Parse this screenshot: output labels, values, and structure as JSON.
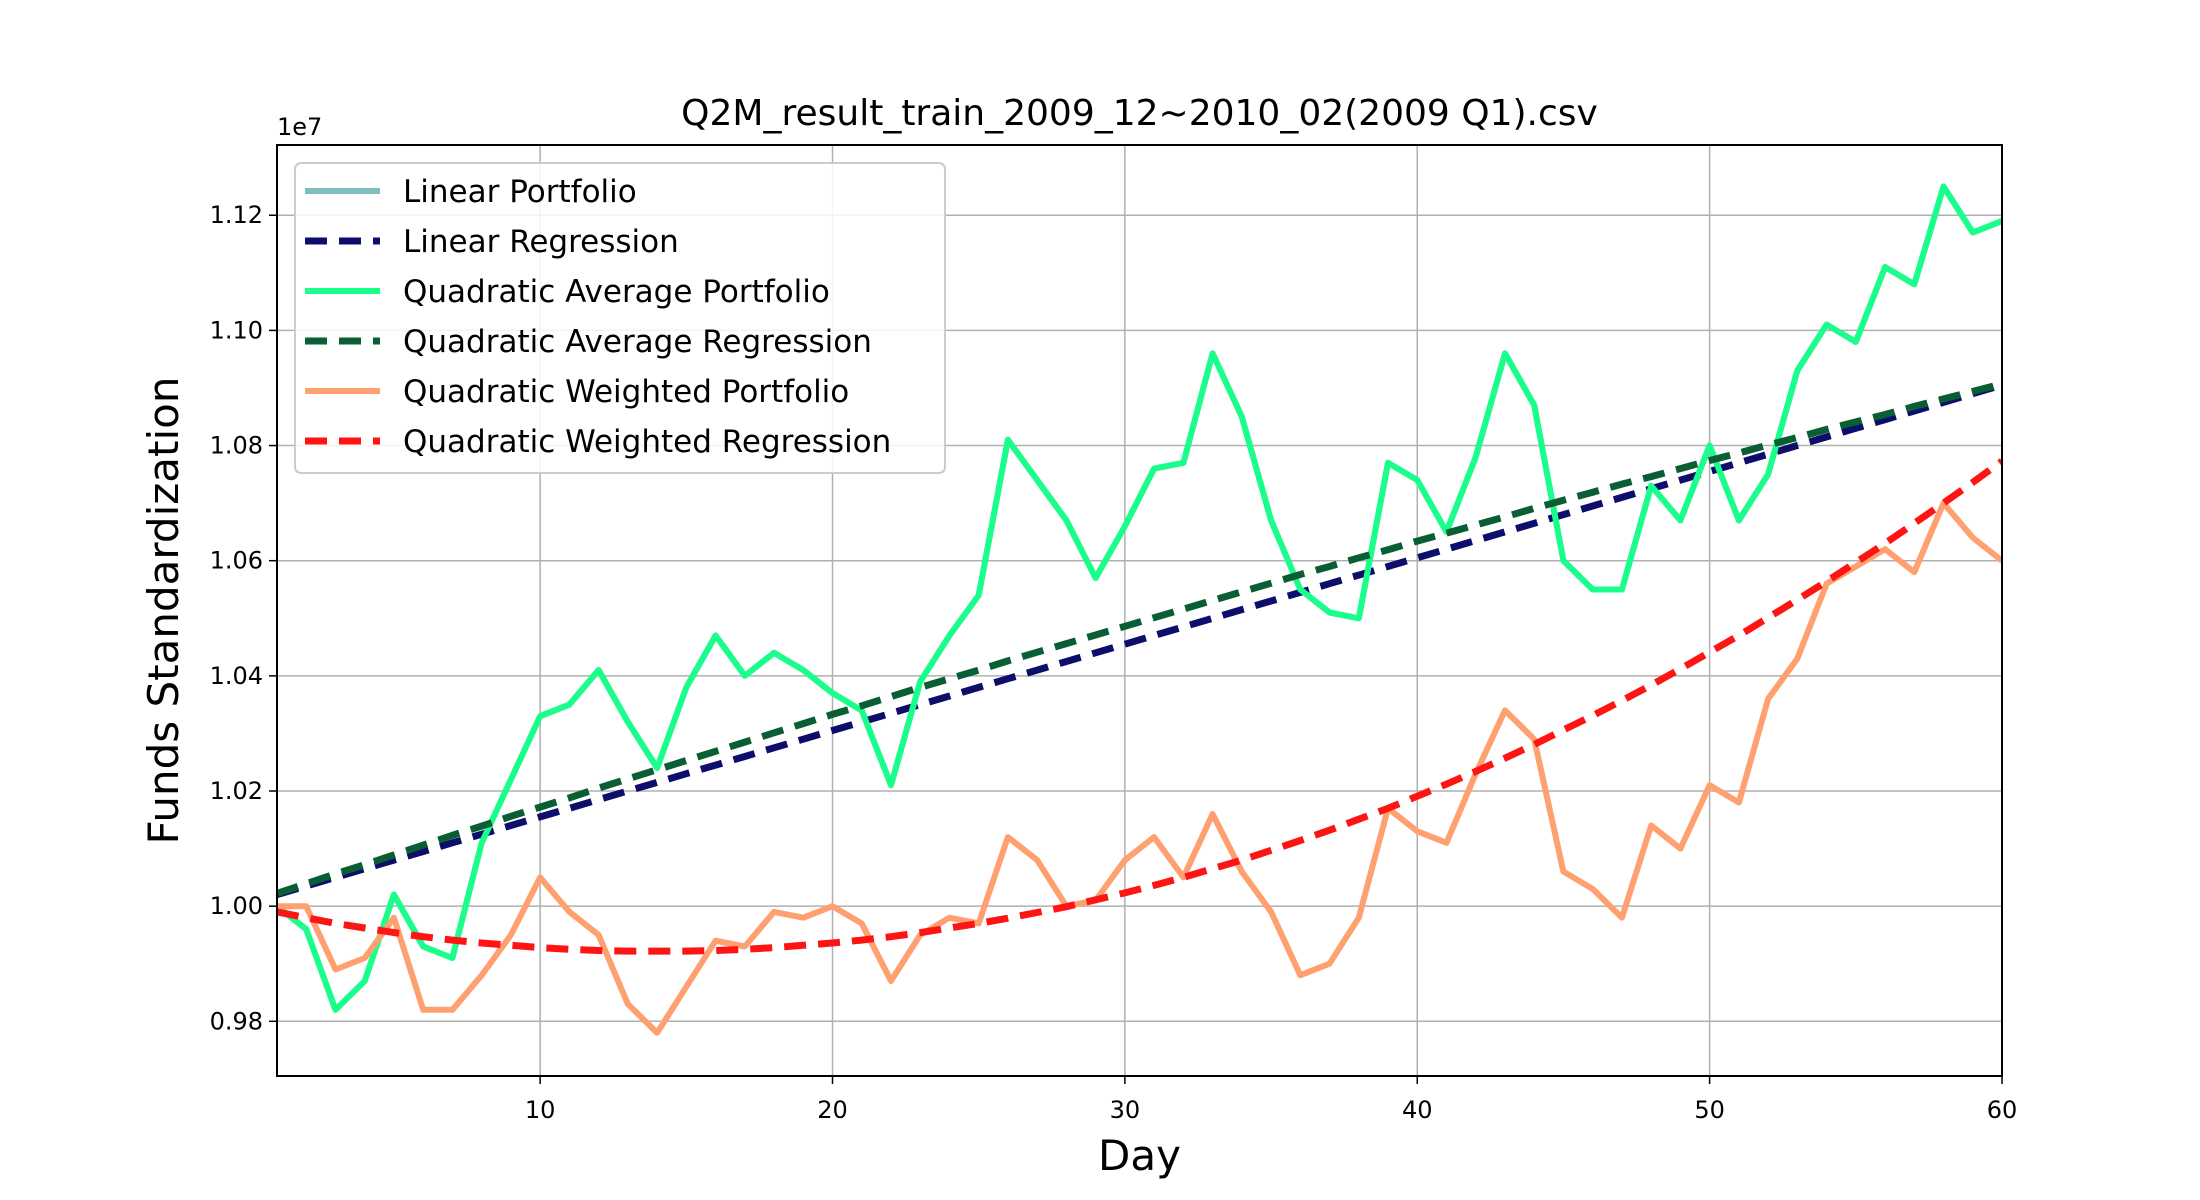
{
  "chart_data": {
    "type": "line",
    "title": "Q2M_result_train_2009_12~2010_02(2009 Q1).csv",
    "xlabel": "Day",
    "ylabel": "Funds Standardization",
    "y_offset_label": "1e7",
    "xlim": [
      1,
      60
    ],
    "ylim": [
      0.9705,
      1.1322
    ],
    "xticks": [
      10,
      20,
      30,
      40,
      50,
      60
    ],
    "yticks": [
      0.98,
      1.0,
      1.02,
      1.04,
      1.06,
      1.08,
      1.1,
      1.12
    ],
    "ytick_labels": [
      "0.98",
      "1.00",
      "1.02",
      "1.04",
      "1.06",
      "1.08",
      "1.10",
      "1.12"
    ],
    "grid": true,
    "legend_position": "upper-left",
    "x": [
      1,
      2,
      3,
      4,
      5,
      6,
      7,
      8,
      9,
      10,
      11,
      12,
      13,
      14,
      15,
      16,
      17,
      18,
      19,
      20,
      21,
      22,
      23,
      24,
      25,
      26,
      27,
      28,
      29,
      30,
      31,
      32,
      33,
      34,
      35,
      36,
      37,
      38,
      39,
      40,
      41,
      42,
      43,
      44,
      45,
      46,
      47,
      48,
      49,
      50,
      51,
      52,
      53,
      54,
      55,
      56,
      57,
      58,
      59,
      60
    ],
    "series": [
      {
        "name": "Linear Portfolio",
        "color": "#7fbfbf",
        "style": "solid",
        "values": [
          1.0,
          0.996,
          0.982,
          0.987,
          1.002,
          0.993,
          0.991,
          1.011,
          1.022,
          1.033,
          1.035,
          1.041,
          1.032,
          1.024,
          1.038,
          1.047,
          1.04,
          1.044,
          1.041,
          1.037,
          1.034,
          1.021,
          1.039,
          1.047,
          1.054,
          1.081,
          1.074,
          1.067,
          1.057,
          1.066,
          1.076,
          1.077,
          1.096,
          1.085,
          1.067,
          1.055,
          1.051,
          1.05,
          1.077,
          1.074,
          1.065,
          1.078,
          1.096,
          1.087,
          1.06,
          1.055,
          1.055,
          1.073,
          1.067,
          1.08,
          1.067,
          1.075,
          1.093,
          1.101,
          1.098,
          1.111,
          1.108,
          1.125,
          1.117,
          1.119
        ]
      },
      {
        "name": "Linear Regression",
        "color": "#0d0d6b",
        "style": "dashed",
        "values": [
          1.002,
          1.0035,
          1.005,
          1.0065,
          1.008,
          1.0095,
          1.011,
          1.0125,
          1.014,
          1.0155,
          1.017,
          1.0185,
          1.02,
          1.0215,
          1.023,
          1.0245,
          1.026,
          1.0275,
          1.029,
          1.0305,
          1.032,
          1.0335,
          1.035,
          1.0365,
          1.038,
          1.0395,
          1.041,
          1.0425,
          1.044,
          1.0455,
          1.047,
          1.0485,
          1.05,
          1.0515,
          1.053,
          1.0545,
          1.056,
          1.0575,
          1.059,
          1.0605,
          1.062,
          1.0635,
          1.065,
          1.0665,
          1.068,
          1.0695,
          1.071,
          1.0725,
          1.074,
          1.0755,
          1.077,
          1.0785,
          1.08,
          1.0815,
          1.083,
          1.0845,
          1.086,
          1.0875,
          1.089,
          1.0905
        ]
      },
      {
        "name": "Quadratic Average Portfolio",
        "color": "#1aff8c",
        "style": "solid",
        "values": [
          1.0,
          0.996,
          0.982,
          0.987,
          1.002,
          0.993,
          0.991,
          1.011,
          1.022,
          1.033,
          1.035,
          1.041,
          1.032,
          1.024,
          1.038,
          1.047,
          1.04,
          1.044,
          1.041,
          1.037,
          1.034,
          1.021,
          1.039,
          1.047,
          1.054,
          1.081,
          1.074,
          1.067,
          1.057,
          1.066,
          1.076,
          1.077,
          1.096,
          1.085,
          1.067,
          1.055,
          1.051,
          1.05,
          1.077,
          1.074,
          1.065,
          1.078,
          1.096,
          1.087,
          1.06,
          1.055,
          1.055,
          1.073,
          1.067,
          1.08,
          1.067,
          1.075,
          1.093,
          1.101,
          1.098,
          1.111,
          1.108,
          1.125,
          1.117,
          1.119
        ]
      },
      {
        "name": "Quadratic Average Regression",
        "color": "#0a5e34",
        "style": "dashed",
        "values": [
          1.0022,
          1.0039,
          1.0056,
          1.0072,
          1.0089,
          1.0106,
          1.0123,
          1.0139,
          1.0156,
          1.0172,
          1.0188,
          1.0205,
          1.0221,
          1.0237,
          1.0253,
          1.0269,
          1.0285,
          1.0301,
          1.0317,
          1.0333,
          1.0348,
          1.0364,
          1.038,
          1.0395,
          1.041,
          1.0426,
          1.0441,
          1.0456,
          1.0471,
          1.0486,
          1.0501,
          1.0516,
          1.0531,
          1.0546,
          1.0561,
          1.0576,
          1.059,
          1.0605,
          1.0619,
          1.0634,
          1.0648,
          1.0662,
          1.0676,
          1.0691,
          1.0705,
          1.0719,
          1.0733,
          1.0746,
          1.076,
          1.0774,
          1.0787,
          1.0801,
          1.0814,
          1.0828,
          1.0841,
          1.0854,
          1.0868,
          1.0881,
          1.0894,
          1.0907
        ]
      },
      {
        "name": "Quadratic Weighted Portfolio",
        "color": "#ffa070",
        "style": "solid",
        "values": [
          1.0,
          1.0,
          0.989,
          0.991,
          0.998,
          0.982,
          0.982,
          0.988,
          0.995,
          1.005,
          0.999,
          0.995,
          0.983,
          0.978,
          0.986,
          0.994,
          0.993,
          0.999,
          0.998,
          1.0,
          0.997,
          0.987,
          0.995,
          0.998,
          0.997,
          1.012,
          1.008,
          1.0,
          1.001,
          1.008,
          1.012,
          1.005,
          1.016,
          1.006,
          0.999,
          0.988,
          0.99,
          0.998,
          1.017,
          1.013,
          1.011,
          1.023,
          1.034,
          1.029,
          1.006,
          1.003,
          0.998,
          1.014,
          1.01,
          1.021,
          1.018,
          1.036,
          1.043,
          1.056,
          1.059,
          1.062,
          1.058,
          1.07,
          1.064,
          1.06
        ]
      },
      {
        "name": "Quadratic Weighted Regression",
        "color": "#ff1414",
        "style": "dashed",
        "values": [
          0.999,
          0.998,
          0.997,
          0.9962,
          0.9954,
          0.9947,
          0.9941,
          0.9936,
          0.9932,
          0.9928,
          0.9925,
          0.9923,
          0.9922,
          0.9922,
          0.9922,
          0.9923,
          0.9925,
          0.9928,
          0.9932,
          0.9936,
          0.9941,
          0.9947,
          0.9954,
          0.9962,
          0.997,
          0.9979,
          0.9989,
          0.9999,
          1.0011,
          1.0023,
          1.0036,
          1.005,
          1.0065,
          1.008,
          1.0097,
          1.0114,
          1.0132,
          1.0151,
          1.017,
          1.0191,
          1.0212,
          1.0234,
          1.0257,
          1.0281,
          1.0306,
          1.0331,
          1.0357,
          1.0384,
          1.0412,
          1.0441,
          1.047,
          1.0501,
          1.0532,
          1.0564,
          1.0597,
          1.063,
          1.0665,
          1.07,
          1.0736,
          1.0773
        ]
      }
    ]
  }
}
